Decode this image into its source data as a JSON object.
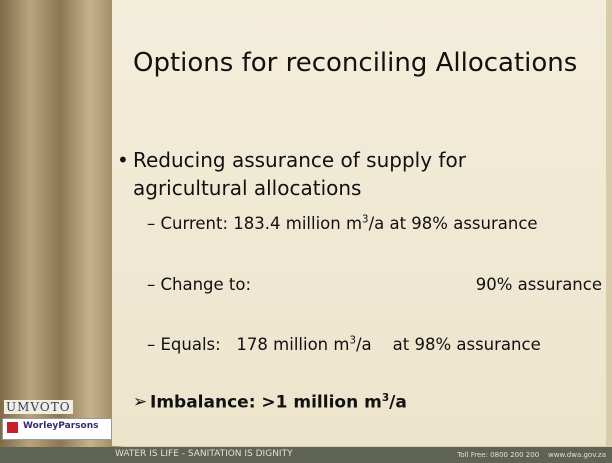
{
  "title": "Options for reconciling Allocations",
  "bullet": {
    "marker": "•",
    "lines": [
      "Reducing assurance of supply for",
      "agricultural allocations"
    ]
  },
  "sub_items": [
    {
      "parts": [
        "– Current: 183.4 million m",
        {
          "sup": "3"
        },
        "/a at 98% assurance"
      ]
    },
    {
      "parts": [
        "– Change to:"
      ],
      "right": "90% assurance"
    },
    {
      "parts": [
        "– Equals:   178 million m",
        {
          "sup": "3"
        },
        "/a    at 98% assurance"
      ]
    }
  ],
  "conclusion": {
    "marker": "➢",
    "parts": [
      "Imbalance: >1 million m",
      {
        "sup": "3"
      },
      "/a"
    ]
  },
  "logos": {
    "umvoto": "UMVOTO",
    "worley": "WorleyParsons"
  },
  "footer": {
    "slogan": "WATER IS LIFE - SANITATION IS DIGNITY",
    "contact": "Toll Free: 0800 200 200    www.dwa.gov.za"
  }
}
